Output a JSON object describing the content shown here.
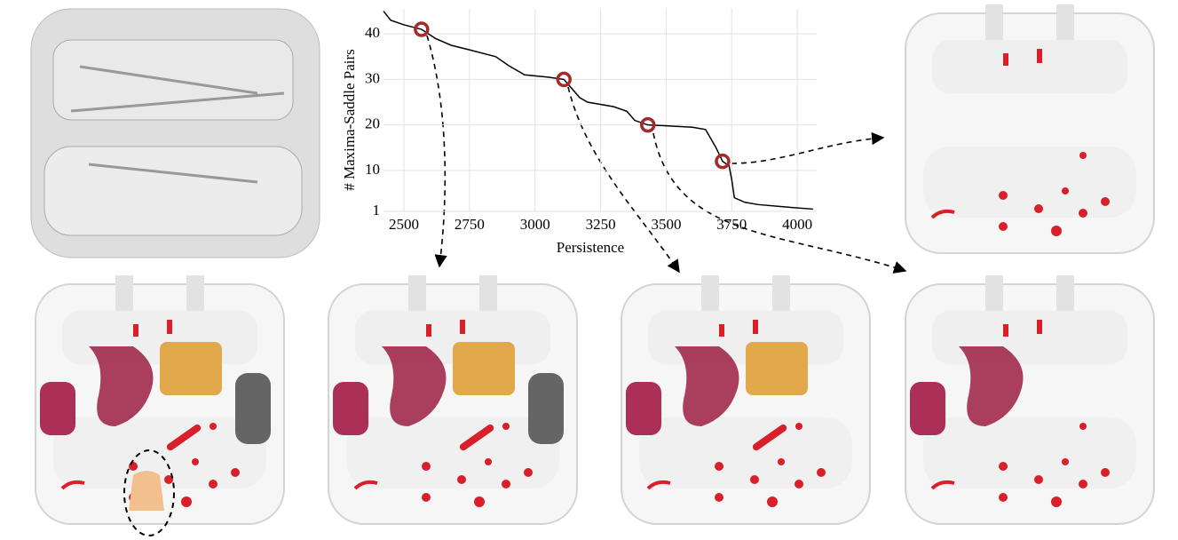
{
  "chart_data": {
    "type": "line",
    "xlabel": "Persistence",
    "ylabel": "# Maxima-Saddle Pairs",
    "xlim": [
      2422,
      4074
    ],
    "ylim": [
      1,
      45.5
    ],
    "xticks": [
      2500,
      2750,
      3000,
      3250,
      3500,
      3750,
      4000
    ],
    "yticks": [
      1,
      10,
      20,
      30,
      40
    ],
    "grid": true,
    "series": [
      {
        "color": "#000000",
        "marker": false,
        "x": [
          2422,
          2450,
          2500,
          2567,
          2620,
          2680,
          2750,
          2850,
          2900,
          2960,
          3050,
          3110,
          3140,
          3170,
          3200,
          3300,
          3350,
          3380,
          3430,
          3500,
          3600,
          3650,
          3670,
          3690,
          3715,
          3740,
          3750,
          3760,
          3800,
          3850,
          3950,
          4060
        ],
        "values": [
          45,
          43,
          42,
          41,
          39,
          37.5,
          36.5,
          35,
          33,
          31,
          30.5,
          30,
          28,
          26,
          25,
          24,
          23,
          21,
          20,
          19.8,
          19.5,
          19,
          17,
          15,
          12,
          11,
          8,
          4,
          3,
          2.5,
          2,
          1.5
        ]
      },
      {
        "color": "#a52a2a",
        "marker": true,
        "x": [
          2567,
          3110,
          3430,
          3715
        ],
        "values": [
          41,
          30,
          20,
          12
        ]
      }
    ]
  }
}
